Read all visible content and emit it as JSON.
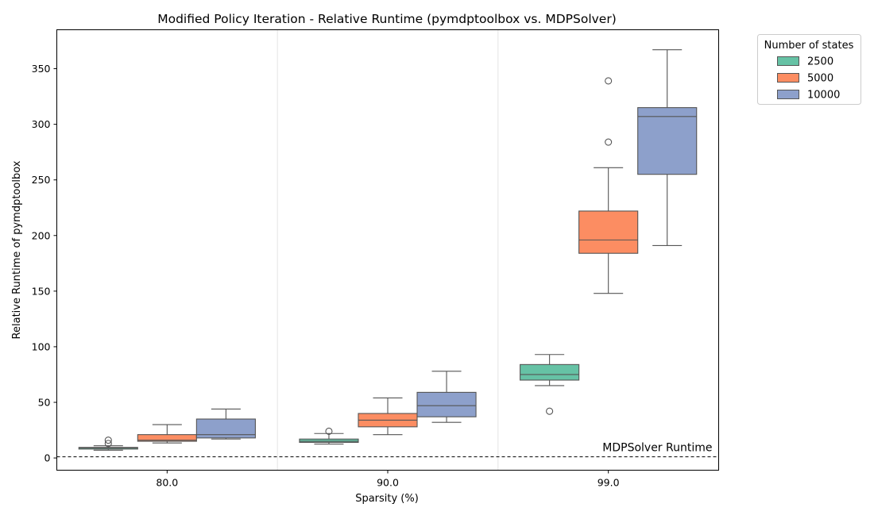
{
  "chart_data": {
    "type": "box",
    "title": "Modified Policy Iteration - Relative Runtime (pymdptoolbox vs. MDPSolver)",
    "xlabel": "Sparsity (%)",
    "ylabel": "Relative Runtime of pymdptoolbox",
    "categories": [
      "80.0",
      "90.0",
      "99.0"
    ],
    "ylim": [
      -11,
      385
    ],
    "yticks": [
      0,
      50,
      100,
      150,
      200,
      250,
      300,
      350
    ],
    "grid": "vertical separators between categories",
    "legend": {
      "title": "Number of states",
      "placement": "outside upper-right"
    },
    "reference_line": {
      "y": 1,
      "label": "MDPSolver Runtime",
      "style": "dashed"
    },
    "series": [
      {
        "name": "2500",
        "color": "#66c2a5",
        "boxes": [
          {
            "whisker_low": 7,
            "q1": 8,
            "median": 9,
            "q3": 9.5,
            "whisker_high": 11,
            "outliers": [
              13,
              16
            ]
          },
          {
            "whisker_low": 12.5,
            "q1": 14,
            "median": 15,
            "q3": 17,
            "whisker_high": 22,
            "outliers": [
              24
            ]
          },
          {
            "whisker_low": 65,
            "q1": 70,
            "median": 75,
            "q3": 84,
            "whisker_high": 93,
            "outliers": [
              42
            ]
          }
        ]
      },
      {
        "name": "5000",
        "color": "#fc8d62",
        "boxes": [
          {
            "whisker_low": 13.5,
            "q1": 15,
            "median": 16,
            "q3": 21,
            "whisker_high": 30,
            "outliers": []
          },
          {
            "whisker_low": 21,
            "q1": 28,
            "median": 34,
            "q3": 40,
            "whisker_high": 54,
            "outliers": []
          },
          {
            "whisker_low": 148,
            "q1": 184,
            "median": 196,
            "q3": 222,
            "whisker_high": 261,
            "outliers": [
              284,
              339
            ]
          }
        ]
      },
      {
        "name": "10000",
        "color": "#8da0cb",
        "boxes": [
          {
            "whisker_low": 17,
            "q1": 18,
            "median": 21,
            "q3": 35,
            "whisker_high": 44,
            "outliers": []
          },
          {
            "whisker_low": 32,
            "q1": 37,
            "median": 47,
            "q3": 59,
            "whisker_high": 78,
            "outliers": []
          },
          {
            "whisker_low": 191,
            "q1": 255,
            "median": 307,
            "q3": 315,
            "whisker_high": 367,
            "outliers": []
          }
        ]
      }
    ]
  }
}
